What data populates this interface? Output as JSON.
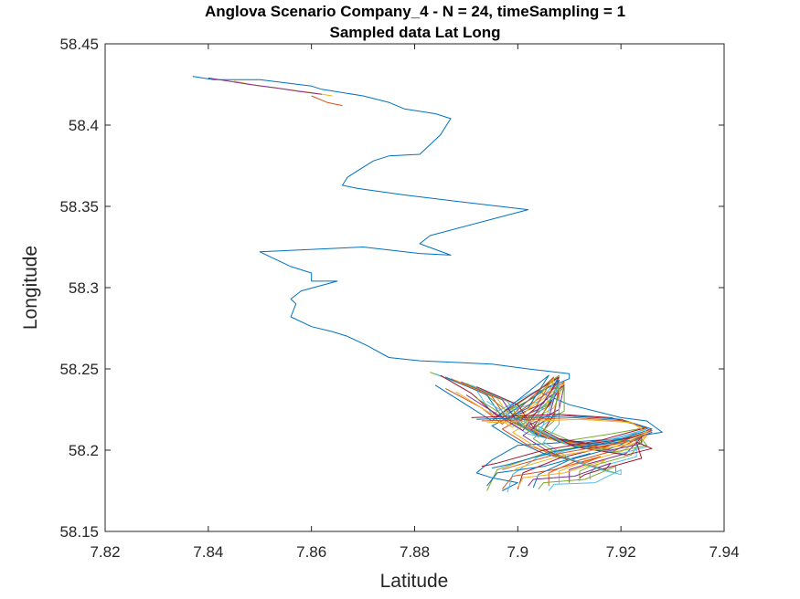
{
  "chart_data": {
    "type": "line",
    "title": "Anglova Scenario Company_4 - N = 24, timeSampling = 1",
    "subtitle": "Sampled data Lat Long",
    "xlabel": "Latitude",
    "ylabel": "Longitude",
    "xlim": [
      7.82,
      7.94
    ],
    "ylim": [
      58.15,
      58.45
    ],
    "xticks": [
      "7.82",
      "7.84",
      "7.86",
      "7.88",
      "7.9",
      "7.92",
      "7.94"
    ],
    "yticks": [
      "58.15",
      "58.2",
      "58.25",
      "58.3",
      "58.35",
      "58.4",
      "58.45"
    ],
    "grid": false,
    "legend": "none",
    "colors": [
      "#0072BD",
      "#D95319",
      "#EDB120",
      "#7E2F8E",
      "#77AC30",
      "#4DBEEE",
      "#A2142F"
    ],
    "series": [
      {
        "x": [
          7.837,
          7.841,
          7.843,
          7.85,
          7.855,
          7.86,
          7.862,
          7.87,
          7.875,
          7.878,
          7.884,
          7.887,
          7.885,
          7.881,
          7.875,
          7.872,
          7.869,
          7.867,
          7.866,
          7.869,
          7.878,
          7.891,
          7.902,
          7.883,
          7.881,
          7.887,
          7.881,
          7.87,
          7.85,
          7.856,
          7.86,
          7.86,
          7.865,
          7.858,
          7.856,
          7.857,
          7.856,
          7.86,
          7.864,
          7.867,
          7.871,
          7.875,
          7.881,
          7.888,
          7.895,
          7.902,
          7.91,
          7.91,
          7.904,
          7.91,
          7.92,
          7.925,
          7.928,
          7.92,
          7.91,
          7.9,
          7.895,
          7.892,
          7.895,
          7.9,
          7.897
        ],
        "y": [
          58.43,
          58.428,
          58.428,
          58.428,
          58.426,
          58.424,
          58.422,
          58.418,
          58.414,
          58.41,
          58.407,
          58.404,
          58.394,
          58.382,
          58.381,
          58.378,
          58.372,
          58.368,
          58.363,
          58.361,
          58.357,
          58.352,
          58.348,
          58.332,
          58.327,
          58.32,
          58.321,
          58.325,
          58.322,
          58.313,
          58.309,
          58.304,
          58.304,
          58.298,
          58.293,
          58.29,
          58.282,
          58.276,
          58.273,
          58.27,
          58.264,
          58.257,
          58.255,
          58.254,
          58.253,
          58.25,
          58.247,
          58.244,
          58.236,
          58.228,
          58.22,
          58.218,
          58.211,
          58.207,
          58.205,
          58.203,
          58.194,
          58.186,
          58.183,
          58.18,
          58.175
        ]
      },
      {
        "x": [
          7.86,
          7.863,
          7.866
        ],
        "y": [
          58.418,
          58.414,
          58.412
        ]
      },
      {
        "x": [
          7.845,
          7.85,
          7.855,
          7.86,
          7.864
        ],
        "y": [
          58.427,
          58.424,
          58.422,
          58.42,
          58.418
        ]
      },
      {
        "x": [
          7.84,
          7.844,
          7.848,
          7.853,
          7.857,
          7.862
        ],
        "y": [
          58.429,
          58.427,
          58.425,
          58.423,
          58.421,
          58.419
        ]
      },
      {
        "x": [
          7.883,
          7.893,
          7.898,
          7.908,
          7.903,
          7.898,
          7.905,
          7.91,
          7.918,
          7.925,
          7.92,
          7.906,
          7.896,
          7.894
        ],
        "y": [
          58.248,
          58.236,
          58.224,
          58.246,
          58.232,
          58.224,
          58.213,
          58.206,
          58.21,
          58.214,
          58.206,
          58.199,
          58.188,
          58.175
        ]
      },
      {
        "x": [
          7.884,
          7.892,
          7.895,
          7.908,
          7.904,
          7.896,
          7.902,
          7.912,
          7.92,
          7.925,
          7.914,
          7.904,
          7.899,
          7.898
        ],
        "y": [
          58.247,
          58.237,
          58.222,
          58.244,
          58.23,
          58.221,
          58.21,
          58.203,
          58.208,
          58.213,
          58.203,
          58.196,
          58.185,
          58.174
        ]
      },
      {
        "x": [
          7.885,
          7.891,
          7.896,
          7.908,
          7.905,
          7.898,
          7.904,
          7.914,
          7.921,
          7.926,
          7.917,
          7.908,
          7.901,
          7.9
        ],
        "y": [
          58.246,
          58.235,
          58.221,
          58.245,
          58.229,
          58.219,
          58.209,
          58.204,
          58.207,
          58.212,
          58.202,
          58.195,
          58.186,
          58.176
        ]
      },
      {
        "x": [
          7.886,
          7.894,
          7.897,
          7.908,
          7.906,
          7.899,
          7.905,
          7.915,
          7.922,
          7.926,
          7.918,
          7.91,
          7.904,
          7.903
        ],
        "y": [
          58.245,
          58.234,
          58.22,
          58.243,
          58.228,
          58.218,
          58.208,
          58.203,
          58.206,
          58.211,
          58.201,
          58.194,
          58.185,
          58.177
        ]
      },
      {
        "x": [
          7.887,
          7.895,
          7.898,
          7.909,
          7.906,
          7.9,
          7.906,
          7.916,
          7.923,
          7.925,
          7.919,
          7.911,
          7.906,
          7.906
        ],
        "y": [
          58.244,
          58.233,
          58.219,
          58.242,
          58.227,
          58.217,
          58.207,
          58.202,
          58.206,
          58.21,
          58.2,
          58.193,
          58.186,
          58.178
        ]
      },
      {
        "x": [
          7.888,
          7.896,
          7.899,
          7.909,
          7.907,
          7.901,
          7.907,
          7.917,
          7.924,
          7.925,
          7.92,
          7.912,
          7.908,
          7.908
        ],
        "y": [
          58.243,
          58.232,
          58.218,
          58.241,
          58.226,
          58.216,
          58.206,
          58.201,
          58.205,
          58.209,
          58.199,
          58.192,
          58.187,
          58.179
        ]
      },
      {
        "x": [
          7.889,
          7.897,
          7.9,
          7.909,
          7.908,
          7.902,
          7.908,
          7.918,
          7.924,
          7.924,
          7.921,
          7.913,
          7.91,
          7.91
        ],
        "y": [
          58.242,
          58.231,
          58.217,
          58.24,
          58.225,
          58.215,
          58.205,
          58.2,
          58.204,
          58.208,
          58.198,
          58.191,
          58.188,
          58.18
        ]
      },
      {
        "x": [
          7.89,
          7.898,
          7.901,
          7.909,
          7.909,
          7.903,
          7.909,
          7.919,
          7.925,
          7.924,
          7.922,
          7.914,
          7.912,
          7.912
        ],
        "y": [
          58.241,
          58.23,
          58.216,
          58.239,
          58.224,
          58.214,
          58.204,
          58.199,
          58.203,
          58.207,
          58.197,
          58.19,
          58.187,
          58.181
        ]
      },
      {
        "x": [
          7.891,
          7.899,
          7.902,
          7.908,
          7.908,
          7.904,
          7.91,
          7.92,
          7.925,
          7.923,
          7.923,
          7.915,
          7.914,
          7.914
        ],
        "y": [
          58.24,
          58.229,
          58.215,
          58.238,
          58.223,
          58.213,
          58.203,
          58.198,
          58.202,
          58.206,
          58.196,
          58.189,
          58.186,
          58.182
        ]
      },
      {
        "x": [
          7.892,
          7.9,
          7.903,
          7.908,
          7.907,
          7.905,
          7.911,
          7.921,
          7.926,
          7.923,
          7.924,
          7.916,
          7.913,
          7.912
        ],
        "y": [
          58.239,
          58.228,
          58.214,
          58.237,
          58.222,
          58.212,
          58.202,
          58.197,
          58.201,
          58.205,
          58.195,
          58.188,
          58.185,
          58.183
        ]
      },
      {
        "x": [
          7.884,
          7.89,
          7.895,
          7.906,
          7.902,
          7.895,
          7.9,
          7.905,
          7.91,
          7.914,
          7.905,
          7.896,
          7.894
        ],
        "y": [
          58.24,
          58.228,
          58.218,
          58.246,
          58.226,
          58.215,
          58.205,
          58.198,
          58.194,
          58.198,
          58.19,
          58.186,
          58.178
        ]
      },
      {
        "x": [
          7.886,
          7.893,
          7.897,
          7.907,
          7.903,
          7.897,
          7.902,
          7.908,
          7.913,
          7.916,
          7.907,
          7.899,
          7.897
        ],
        "y": [
          58.238,
          58.226,
          58.216,
          58.245,
          58.224,
          58.213,
          58.203,
          58.196,
          58.192,
          58.196,
          58.188,
          58.184,
          58.176
        ]
      },
      {
        "x": [
          7.888,
          7.894,
          7.899,
          7.907,
          7.905,
          7.899,
          7.904,
          7.91,
          7.915,
          7.917,
          7.909,
          7.901,
          7.9
        ],
        "y": [
          58.236,
          58.224,
          58.214,
          58.244,
          58.222,
          58.211,
          58.201,
          58.194,
          58.19,
          58.194,
          58.186,
          58.183,
          58.177
        ]
      },
      {
        "x": [
          7.89,
          7.896,
          7.901,
          7.908,
          7.906,
          7.901,
          7.906,
          7.912,
          7.917,
          7.918,
          7.911,
          7.903,
          7.902
        ],
        "y": [
          58.234,
          58.222,
          58.212,
          58.243,
          58.22,
          58.209,
          58.199,
          58.192,
          58.188,
          58.192,
          58.184,
          58.182,
          58.178
        ]
      },
      {
        "x": [
          7.892,
          7.898,
          7.903,
          7.908,
          7.907,
          7.903,
          7.908,
          7.914,
          7.919,
          7.919,
          7.913,
          7.905,
          7.904
        ],
        "y": [
          58.232,
          58.22,
          58.21,
          58.242,
          58.218,
          58.207,
          58.197,
          58.19,
          58.186,
          58.19,
          58.182,
          58.18,
          58.176
        ]
      },
      {
        "x": [
          7.894,
          7.9,
          7.904,
          7.908,
          7.908,
          7.905,
          7.91,
          7.916,
          7.92,
          7.92,
          7.915,
          7.907,
          7.906
        ],
        "y": [
          58.23,
          58.218,
          58.208,
          58.241,
          58.216,
          58.205,
          58.195,
          58.188,
          58.185,
          58.188,
          58.18,
          58.179,
          58.175
        ]
      },
      {
        "x": [
          7.891,
          7.9,
          7.908,
          7.918,
          7.925,
          7.916,
          7.905,
          7.896,
          7.893
        ],
        "y": [
          58.22,
          58.221,
          58.222,
          58.22,
          58.214,
          58.206,
          58.2,
          58.192,
          58.19
        ]
      },
      {
        "x": [
          7.892,
          7.902,
          7.91,
          7.92,
          7.926,
          7.918,
          7.907,
          7.898,
          7.895
        ],
        "y": [
          58.219,
          58.22,
          58.221,
          58.219,
          58.213,
          58.205,
          58.199,
          58.191,
          58.189
        ]
      },
      {
        "x": [
          7.893,
          7.903,
          7.911,
          7.921,
          7.926,
          7.919,
          7.908,
          7.899,
          7.897
        ],
        "y": [
          58.218,
          58.219,
          58.22,
          58.218,
          58.212,
          58.204,
          58.198,
          58.19,
          58.188
        ]
      },
      {
        "x": [
          7.894,
          7.904,
          7.912,
          7.922,
          7.925,
          7.92,
          7.909,
          7.9,
          7.899
        ],
        "y": [
          58.217,
          58.218,
          58.219,
          58.217,
          58.211,
          58.203,
          58.197,
          58.189,
          58.187
        ]
      }
    ]
  }
}
